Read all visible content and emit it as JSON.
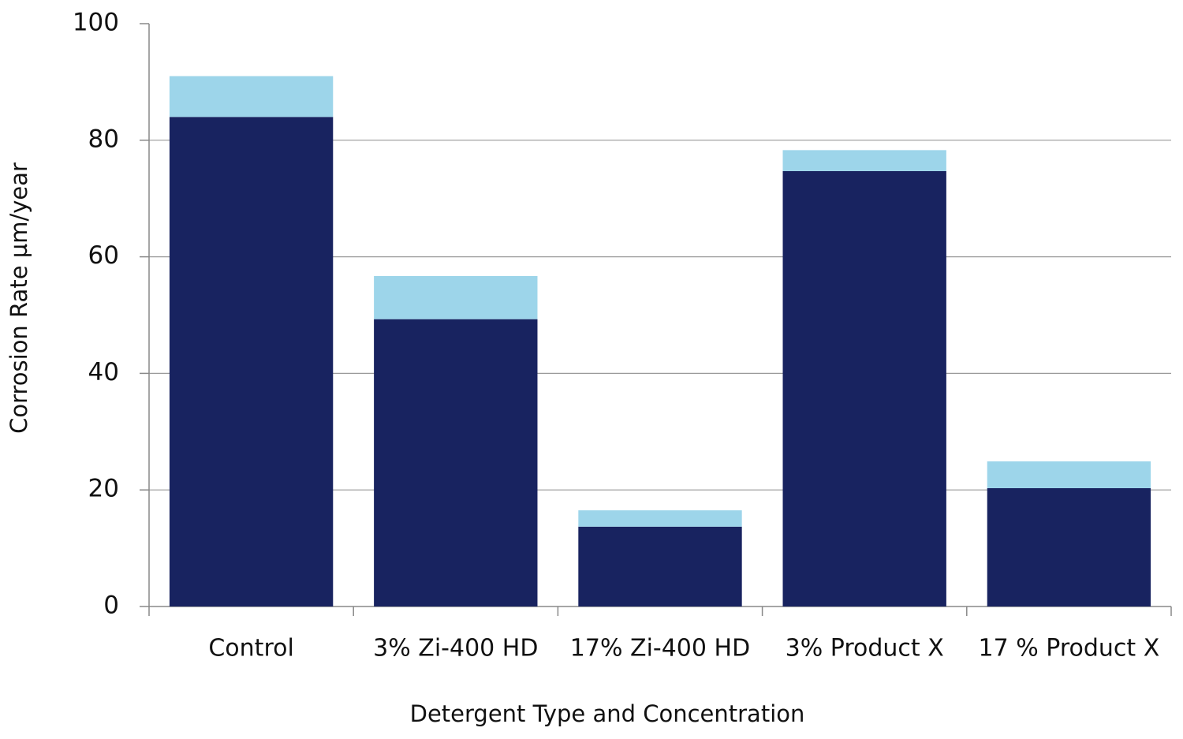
{
  "chart_data": {
    "type": "stacked-bar",
    "x_label": "Detergent Type and Concentration",
    "y_label": "Corrosion  Rate   µm/year",
    "categories": [
      "Control",
      "3% Zi-400 HD",
      "17% Zi-400 HD",
      "3% Product X",
      "17 % Product X"
    ],
    "series": [
      {
        "color": "#182360",
        "values": [
          84,
          49.3,
          13.7,
          74.7,
          20.3
        ]
      },
      {
        "color": "#9dd5ea",
        "values": [
          7,
          7.4,
          2.8,
          3.6,
          4.6
        ]
      }
    ],
    "ylim": [
      0,
      100
    ],
    "yticks": [
      0,
      20,
      40,
      60,
      80,
      100
    ],
    "grid": true
  }
}
